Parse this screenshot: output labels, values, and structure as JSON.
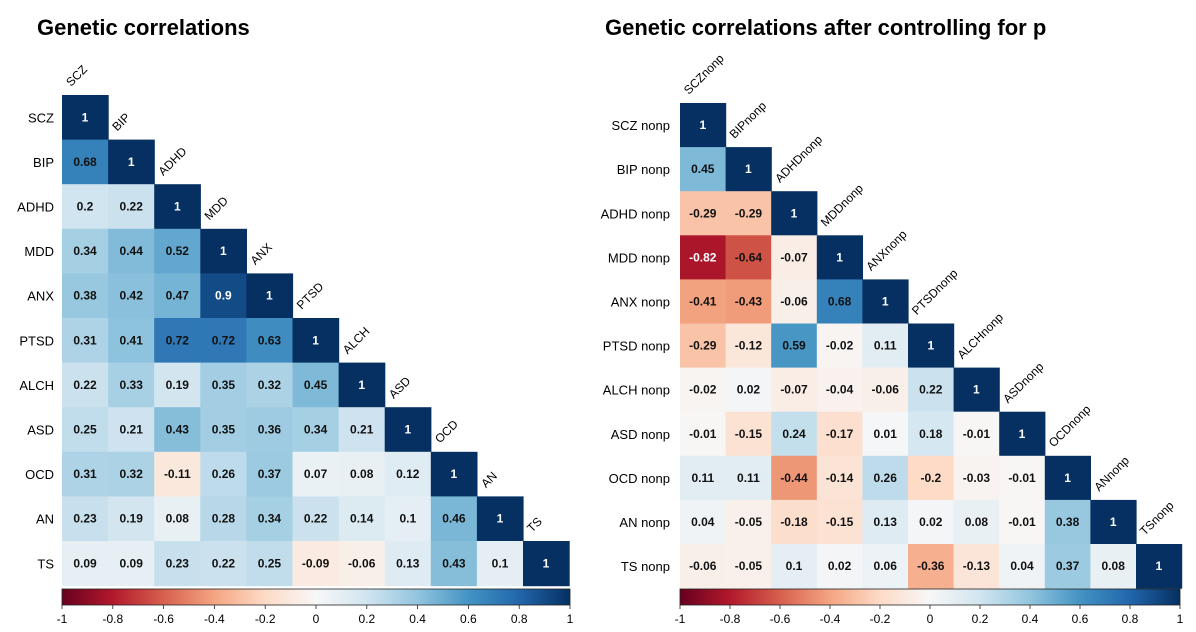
{
  "chart_data": [
    {
      "type": "heatmap",
      "title": "Genetic correlations",
      "row_labels": [
        "SCZ",
        "BIP",
        "ADHD",
        "MDD",
        "ANX",
        "PTSD",
        "ALCH",
        "ASD",
        "OCD",
        "AN",
        "TS"
      ],
      "col_labels": [
        "SCZ",
        "BIP",
        "ADHD",
        "MDD",
        "ANX",
        "PTSD",
        "ALCH",
        "ASD",
        "OCD",
        "AN",
        "TS"
      ],
      "values": [
        [
          1
        ],
        [
          0.68,
          1
        ],
        [
          0.2,
          0.22,
          1
        ],
        [
          0.34,
          0.44,
          0.52,
          1
        ],
        [
          0.38,
          0.42,
          0.47,
          0.9,
          1
        ],
        [
          0.31,
          0.41,
          0.72,
          0.72,
          0.63,
          1
        ],
        [
          0.22,
          0.33,
          0.19,
          0.35,
          0.32,
          0.45,
          1
        ],
        [
          0.25,
          0.21,
          0.43,
          0.35,
          0.36,
          0.34,
          0.21,
          1
        ],
        [
          0.31,
          0.32,
          -0.11,
          0.26,
          0.37,
          0.07,
          0.08,
          0.12,
          1
        ],
        [
          0.23,
          0.19,
          0.08,
          0.28,
          0.34,
          0.22,
          0.14,
          0.1,
          0.46,
          1
        ],
        [
          0.09,
          0.09,
          0.23,
          0.22,
          0.25,
          -0.09,
          -0.06,
          0.13,
          0.43,
          0.1,
          1
        ]
      ],
      "colorbar": {
        "range": [
          -1,
          1
        ],
        "ticks": [
          -1,
          -0.8,
          -0.6,
          -0.4,
          -0.2,
          0,
          0.2,
          0.4,
          0.6,
          0.8,
          1
        ],
        "tick_labels": [
          "-1",
          "-0.8",
          "-0.6",
          "-0.4",
          "-0.2",
          "0",
          "0.2",
          "0.4",
          "0.6",
          "0.8",
          "1"
        ],
        "low_color": "#67001f",
        "mid_color": "#f7f7f7",
        "high_color": "#053061"
      },
      "layout": "lower-triangle"
    },
    {
      "type": "heatmap",
      "title": "Genetic correlations after controlling for p",
      "row_labels": [
        "SCZ nonp",
        "BIP nonp",
        "ADHD nonp",
        "MDD nonp",
        "ANX nonp",
        "PTSD nonp",
        "ALCH nonp",
        "ASD nonp",
        "OCD nonp",
        "AN nonp",
        "TS nonp"
      ],
      "col_labels": [
        "SCZnonp",
        "BIPnonp",
        "ADHDnonp",
        "MDDnonp",
        "ANXnonp",
        "PTSDnonp",
        "ALCHnonp",
        "ASDnonp",
        "OCDnonp",
        "ANnonp",
        "TSnonp"
      ],
      "values": [
        [
          1
        ],
        [
          0.45,
          1
        ],
        [
          -0.29,
          -0.29,
          1
        ],
        [
          -0.82,
          -0.64,
          -0.07,
          1
        ],
        [
          -0.41,
          -0.43,
          -0.06,
          0.68,
          1
        ],
        [
          -0.29,
          -0.12,
          0.59,
          -0.02,
          0.11,
          1
        ],
        [
          -0.02,
          0.02,
          -0.07,
          -0.04,
          -0.06,
          0.22,
          1
        ],
        [
          -0.01,
          -0.15,
          0.24,
          -0.17,
          0.01,
          0.18,
          -0.01,
          1
        ],
        [
          0.11,
          0.11,
          -0.44,
          -0.14,
          0.26,
          -0.2,
          -0.03,
          -0.01,
          1
        ],
        [
          0.04,
          -0.05,
          -0.18,
          -0.15,
          0.13,
          0.02,
          0.08,
          -0.01,
          0.38,
          1
        ],
        [
          -0.06,
          -0.05,
          0.1,
          0.02,
          0.06,
          -0.36,
          -0.13,
          0.04,
          0.37,
          0.08,
          1
        ]
      ],
      "colorbar": {
        "range": [
          -1,
          1
        ],
        "ticks": [
          -1,
          -0.8,
          -0.6,
          -0.4,
          -0.2,
          0,
          0.2,
          0.4,
          0.6,
          0.8,
          1
        ],
        "tick_labels": [
          "-1",
          "-0.8",
          "-0.6",
          "-0.4",
          "-0.2",
          "0",
          "0.2",
          "0.4",
          "0.6",
          "0.8",
          "1"
        ],
        "low_color": "#67001f",
        "mid_color": "#f7f7f7",
        "high_color": "#053061"
      },
      "layout": "lower-triangle"
    }
  ]
}
